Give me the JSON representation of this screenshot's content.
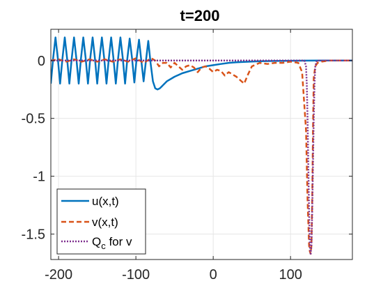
{
  "chart_data": {
    "type": "line",
    "title": "t=200",
    "xlim": [
      -210,
      180
    ],
    "ylim": [
      -1.72,
      0.27
    ],
    "grid": true,
    "x_ticks": [
      -200,
      -100,
      0,
      100
    ],
    "x_tick_labels": [
      "-200",
      "-100",
      "0",
      "100"
    ],
    "y_ticks": [
      0,
      -0.5,
      -1,
      -1.5
    ],
    "y_tick_labels": [
      "0",
      "-0.5",
      "-1",
      "-1.5"
    ],
    "legend_position": "bottom-left",
    "series": [
      {
        "name": "u(x,t)",
        "legend_label": "u(x,t)",
        "color": "#0072BD",
        "style": "solid",
        "x": [
          -210,
          -207,
          -204,
          -201,
          -198,
          -195,
          -192,
          -189,
          -186,
          -183,
          -180,
          -177,
          -174,
          -171,
          -168,
          -165,
          -162,
          -159,
          -156,
          -153,
          -150,
          -147,
          -144,
          -141,
          -138,
          -135,
          -132,
          -129,
          -126,
          -123,
          -120,
          -117,
          -114,
          -111,
          -108,
          -105,
          -102,
          -99,
          -96,
          -93,
          -90,
          -87,
          -84,
          -81,
          -78,
          -75,
          -72,
          -69,
          -66,
          -60,
          -50,
          -40,
          -30,
          -20,
          -10,
          0,
          10,
          20,
          30,
          40,
          50,
          60,
          80,
          100,
          120,
          140,
          160,
          180
        ],
        "y": [
          -0.2,
          0.02,
          0.2,
          0.02,
          -0.2,
          0.02,
          0.2,
          0.02,
          -0.2,
          0.02,
          0.2,
          0.02,
          -0.2,
          0.02,
          0.2,
          0.02,
          -0.2,
          0.02,
          0.2,
          0.02,
          -0.2,
          0.02,
          0.2,
          0.02,
          -0.2,
          0.02,
          0.2,
          0.02,
          -0.2,
          0.02,
          0.2,
          0.02,
          -0.2,
          0.02,
          0.19,
          0.02,
          -0.19,
          0.02,
          0.18,
          0.0,
          -0.18,
          0.0,
          0.17,
          -0.02,
          -0.18,
          -0.24,
          -0.25,
          -0.24,
          -0.22,
          -0.18,
          -0.14,
          -0.11,
          -0.09,
          -0.07,
          -0.05,
          -0.04,
          -0.03,
          -0.02,
          -0.015,
          -0.012,
          -0.009,
          -0.006,
          -0.004,
          -0.002,
          -0.001,
          0,
          0,
          0
        ]
      },
      {
        "name": "v(x,t)",
        "legend_label": "v(x,t)",
        "color": "#D95319",
        "style": "dashed",
        "x": [
          -210,
          -200,
          -190,
          -180,
          -170,
          -160,
          -150,
          -140,
          -130,
          -120,
          -110,
          -100,
          -90,
          -80,
          -75,
          -70,
          -65,
          -60,
          -55,
          -50,
          -45,
          -40,
          -35,
          -30,
          -25,
          -20,
          -15,
          -10,
          -5,
          0,
          5,
          10,
          15,
          20,
          25,
          30,
          35,
          40,
          45,
          50,
          60,
          70,
          80,
          90,
          100,
          110,
          115,
          120,
          122,
          124,
          125,
          126,
          127,
          128,
          129,
          130,
          132,
          135,
          140,
          150,
          160,
          170,
          180
        ],
        "y": [
          0,
          0.01,
          -0.01,
          0.01,
          -0.01,
          0.01,
          -0.01,
          0.01,
          -0.01,
          0.01,
          -0.01,
          0.02,
          -0.02,
          0.02,
          0.0,
          -0.05,
          -0.02,
          -0.02,
          -0.06,
          -0.02,
          -0.05,
          -0.08,
          -0.05,
          -0.04,
          -0.06,
          -0.1,
          -0.06,
          -0.05,
          -0.07,
          -0.1,
          -0.08,
          -0.09,
          -0.13,
          -0.1,
          -0.12,
          -0.14,
          -0.17,
          -0.2,
          -0.12,
          -0.05,
          -0.02,
          -0.03,
          -0.02,
          -0.02,
          -0.01,
          -0.02,
          -0.1,
          -0.6,
          -1.2,
          -1.6,
          -1.65,
          -1.67,
          -1.6,
          -1.2,
          -0.6,
          -0.15,
          -0.05,
          -0.02,
          -0.01,
          0,
          0,
          0,
          0
        ]
      },
      {
        "name": "Q_c for v",
        "legend_label": "Q",
        "legend_subscript": "c",
        "legend_suffix": " for v",
        "color": "#7E2F8E",
        "style": "dotted",
        "x": [
          -210,
          -150,
          -100,
          0,
          100,
          118,
          120,
          121,
          122,
          123,
          124,
          125,
          126,
          127,
          128,
          129,
          130,
          131,
          132,
          134,
          140,
          180
        ],
        "y": [
          0,
          0,
          0,
          0,
          0,
          0,
          -0.05,
          -0.2,
          -0.5,
          -0.9,
          -1.3,
          -1.6,
          -1.68,
          -1.6,
          -1.3,
          -0.9,
          -0.5,
          -0.2,
          -0.05,
          0,
          0,
          0
        ]
      }
    ]
  }
}
